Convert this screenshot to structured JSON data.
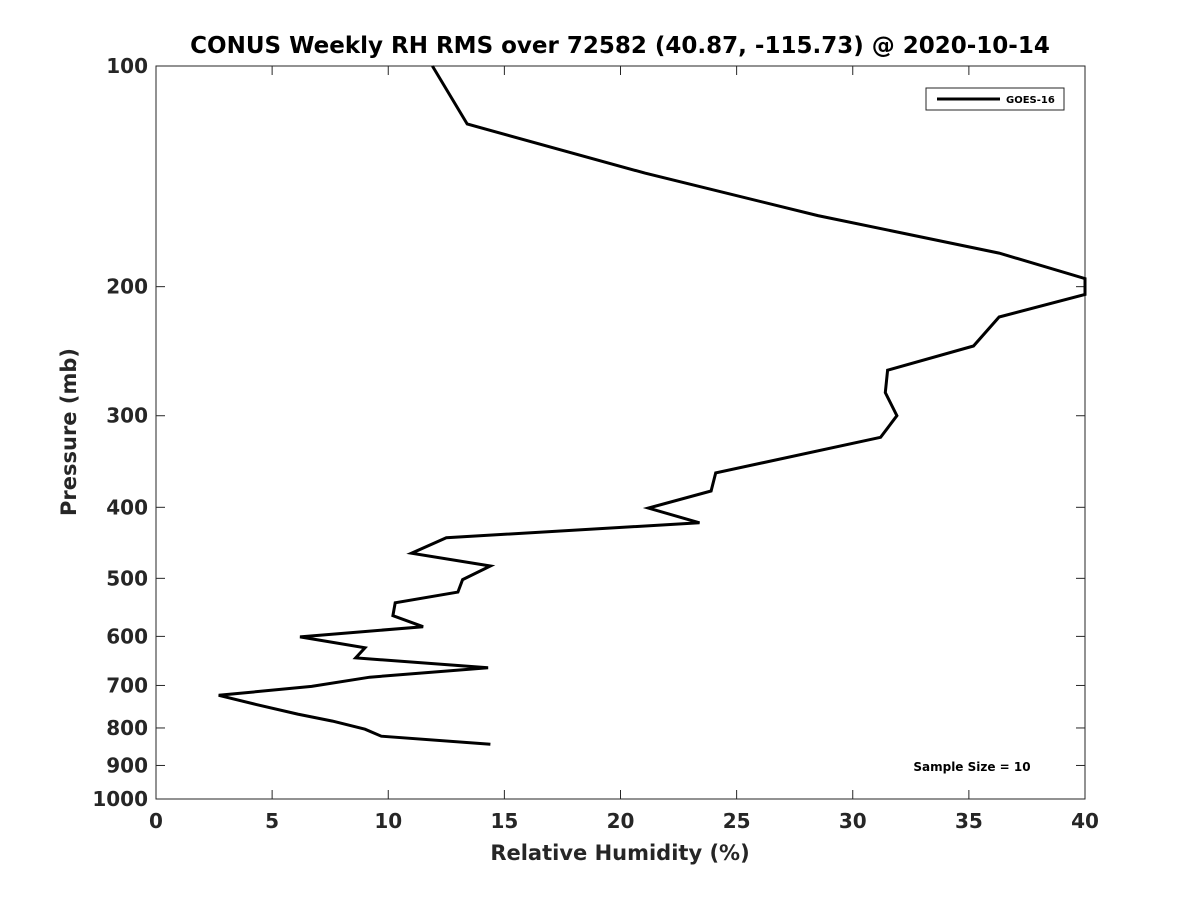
{
  "chart_data": {
    "type": "line",
    "title": "CONUS Weekly RH RMS over 72582 (40.87, -115.73) @ 2020-10-14",
    "xlabel": "Relative Humidity (%)",
    "ylabel": "Pressure (mb)",
    "xlim": [
      0,
      40
    ],
    "ylim": [
      100,
      1000
    ],
    "yscale": "log",
    "yreversed": true,
    "xticks": [
      0,
      5,
      10,
      15,
      20,
      25,
      30,
      35,
      40
    ],
    "xtick_labels": [
      "0",
      "5",
      "10",
      "15",
      "20",
      "25",
      "30",
      "35",
      "40"
    ],
    "yticks": [
      100,
      200,
      300,
      400,
      500,
      600,
      700,
      800,
      900,
      1000
    ],
    "ytick_labels": [
      "100",
      "200",
      "300",
      "400",
      "500",
      "600",
      "700",
      "800",
      "900",
      "1000"
    ],
    "grid": false,
    "legend": {
      "placement": "top-right",
      "entries": [
        "GOES-16"
      ]
    },
    "annotation": "Sample Size = 10",
    "series": [
      {
        "name": "GOES-16",
        "color": "#000000",
        "x": [
          11.9,
          13.4,
          21.05,
          28.5,
          36.3,
          40.0,
          40.0,
          36.3,
          35.2,
          31.5,
          31.4,
          31.9,
          31.2,
          24.1,
          23.9,
          21.2,
          23.4,
          12.5,
          11.0,
          14.4,
          13.2,
          13.0,
          10.3,
          10.2,
          11.5,
          6.2,
          9.0,
          8.6,
          14.3,
          9.2,
          6.7,
          2.7,
          4.3,
          6.1,
          7.6,
          9.0,
          9.7,
          14.4
        ],
        "y": [
          100,
          120,
          140,
          160,
          180,
          195,
          205,
          220,
          241,
          260,
          279,
          300,
          321,
          359,
          380,
          401,
          420,
          440,
          462,
          481,
          502,
          522,
          540,
          562,
          582,
          601,
          622,
          642,
          662,
          682,
          702,
          722,
          743,
          766,
          783,
          803,
          821,
          842
        ]
      }
    ]
  }
}
